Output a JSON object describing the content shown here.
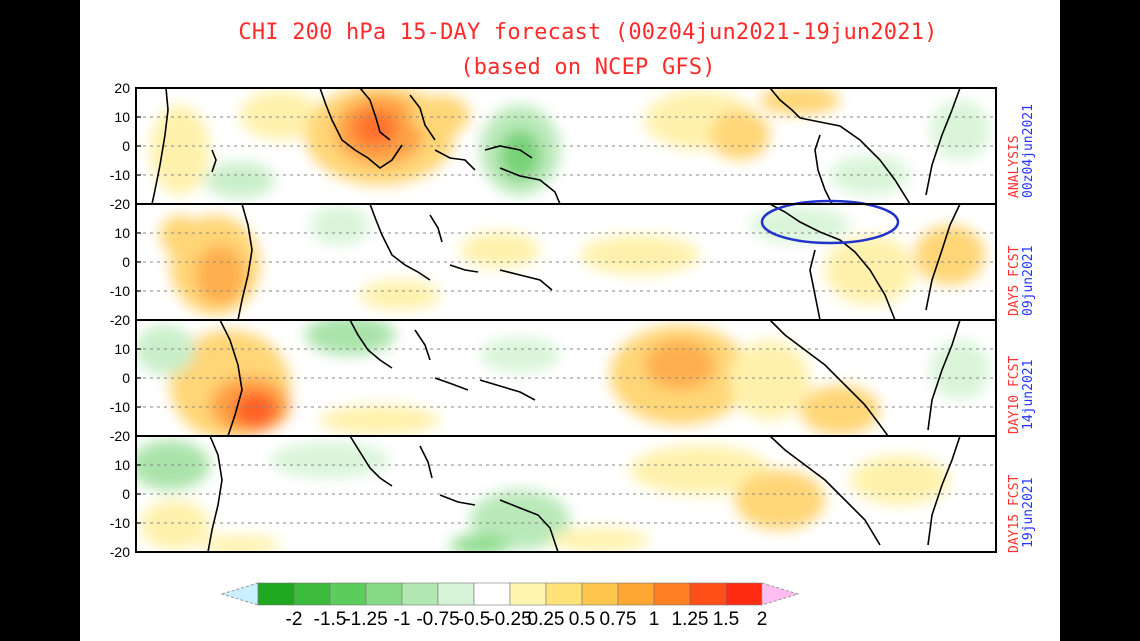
{
  "title": {
    "line1": "CHI 200 hPa 15-DAY forecast (00z04jun2021-19jun2021)",
    "line2": "(based on NCEP GFS)"
  },
  "panels": [
    {
      "id": "analysis",
      "label_top": "ANALYSIS",
      "label_bottom": "00z04jun2021"
    },
    {
      "id": "day5",
      "label_top": "DAY5 FCST",
      "label_bottom": "09jun2021"
    },
    {
      "id": "day10",
      "label_top": "DAY10 FCST",
      "label_bottom": "14jun2021"
    },
    {
      "id": "day15",
      "label_top": "DAY15 FCST",
      "label_bottom": "19jun2021"
    }
  ],
  "yticks": [
    "20",
    "10",
    "0",
    "-10",
    "-20"
  ],
  "colorbar": {
    "labels": [
      "-2",
      "-1.5",
      "-1.25",
      "-1",
      "-0.75",
      "-0.5",
      "-0.25",
      "0.25",
      "0.5",
      "0.75",
      "1",
      "1.25",
      "1.5",
      "2"
    ],
    "colors": [
      "#c8f0ff",
      "#1fa81f",
      "#3cba3c",
      "#5ccc5c",
      "#86da86",
      "#b1e8b1",
      "#d8f4d8",
      "#ffffff",
      "#fff5b0",
      "#ffe27a",
      "#ffc64e",
      "#ffa633",
      "#ff7f23",
      "#ff4f18",
      "#ff2a10",
      "#ffbdf0"
    ]
  },
  "annotation": {
    "shape": "ellipse",
    "color": "#2233cc"
  }
}
